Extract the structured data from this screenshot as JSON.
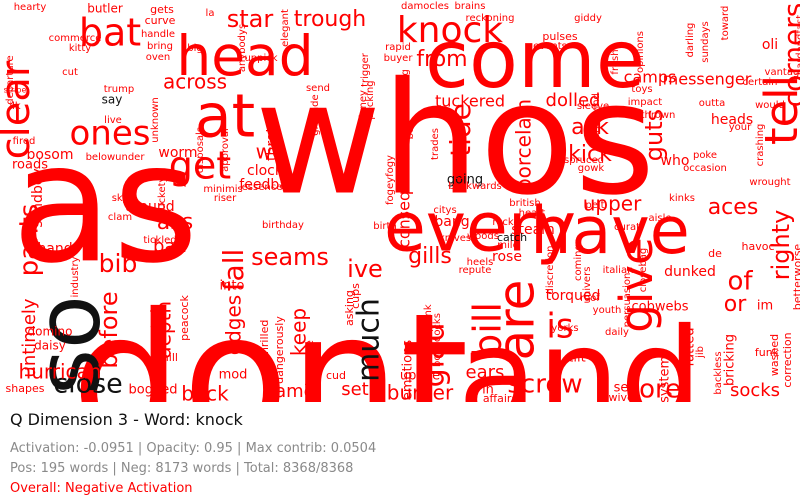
{
  "colors": {
    "positive": "#111111",
    "negative": "#ff0000",
    "muted": "#8a8a8a",
    "text": "#111111"
  },
  "words": [
    {
      "text": "whos",
      "color": "negative"
    },
    {
      "text": "dont",
      "color": "negative"
    },
    {
      "text": "as",
      "color": "negative"
    },
    {
      "text": "and",
      "color": "negative"
    },
    {
      "text": "come",
      "color": "negative"
    },
    {
      "text": "every",
      "color": "negative"
    },
    {
      "text": "have",
      "color": "negative"
    },
    {
      "text": "so",
      "color": "positive"
    },
    {
      "text": "head",
      "color": "negative"
    },
    {
      "text": "at",
      "color": "negative"
    },
    {
      "text": "tell",
      "color": "negative"
    },
    {
      "text": "are",
      "color": "negative"
    },
    {
      "text": "give",
      "color": "negative"
    },
    {
      "text": "knock",
      "color": "negative"
    },
    {
      "text": "clear",
      "color": "negative"
    },
    {
      "text": "bat",
      "color": "negative"
    },
    {
      "text": "ones",
      "color": "negative"
    },
    {
      "text": "get",
      "color": "negative"
    },
    {
      "text": "is",
      "color": "negative"
    },
    {
      "text": "bill",
      "color": "negative"
    },
    {
      "text": "close",
      "color": "positive"
    },
    {
      "text": "screw",
      "color": "negative"
    },
    {
      "text": "tore",
      "color": "negative"
    },
    {
      "text": "star",
      "color": "negative"
    },
    {
      "text": "trough",
      "color": "negative"
    },
    {
      "text": "corners",
      "color": "negative"
    },
    {
      "text": "from",
      "color": "negative"
    },
    {
      "text": "camps",
      "color": "negative"
    },
    {
      "text": "ask",
      "color": "negative"
    },
    {
      "text": "kick",
      "color": "negative"
    },
    {
      "text": "tide",
      "color": "negative"
    },
    {
      "text": "upper",
      "color": "negative"
    },
    {
      "text": "aces",
      "color": "negative"
    },
    {
      "text": "righty",
      "color": "negative"
    },
    {
      "text": "guts",
      "color": "negative"
    },
    {
      "text": "pants",
      "color": "negative"
    },
    {
      "text": "bib",
      "color": "negative"
    },
    {
      "text": "ive",
      "color": "negative"
    },
    {
      "text": "seams",
      "color": "negative"
    },
    {
      "text": "fall",
      "color": "negative"
    },
    {
      "text": "gills",
      "color": "negative"
    },
    {
      "text": "glad",
      "color": "negative"
    },
    {
      "text": "much",
      "color": "positive"
    },
    {
      "text": "of",
      "color": "negative"
    },
    {
      "text": "or",
      "color": "negative"
    },
    {
      "text": "before",
      "color": "negative"
    },
    {
      "text": "back",
      "color": "negative"
    },
    {
      "text": "came",
      "color": "negative"
    },
    {
      "text": "set",
      "color": "negative"
    },
    {
      "text": "burner",
      "color": "negative"
    },
    {
      "text": "ears",
      "color": "negative"
    },
    {
      "text": "socks",
      "color": "negative"
    },
    {
      "text": "untimely",
      "color": "negative"
    },
    {
      "text": "hurrican",
      "color": "negative"
    },
    {
      "text": "across",
      "color": "negative"
    },
    {
      "text": "ass",
      "color": "negative"
    },
    {
      "text": "bad",
      "color": "negative"
    },
    {
      "text": "keep",
      "color": "negative"
    },
    {
      "text": "we",
      "color": "negative"
    },
    {
      "text": "depth",
      "color": "negative"
    },
    {
      "text": "edges",
      "color": "negative"
    },
    {
      "text": "porcelain",
      "color": "negative"
    },
    {
      "text": "consequence",
      "color": "negative"
    },
    {
      "text": "tuckered",
      "color": "negative"
    },
    {
      "text": "dolled",
      "color": "negative"
    },
    {
      "text": "messenger",
      "color": "negative"
    },
    {
      "text": "heads",
      "color": "negative"
    },
    {
      "text": "who",
      "color": "negative"
    },
    {
      "text": "torqued",
      "color": "negative"
    },
    {
      "text": "dunked",
      "color": "negative"
    },
    {
      "text": "steam",
      "color": "negative"
    },
    {
      "text": "rose",
      "color": "negative"
    },
    {
      "text": "bang",
      "color": "negative"
    },
    {
      "text": "worm",
      "color": "negative"
    },
    {
      "text": "clock",
      "color": "negative"
    },
    {
      "text": "feedbag",
      "color": "negative"
    },
    {
      "text": "around",
      "color": "negative"
    },
    {
      "text": "throttle",
      "color": "negative"
    },
    {
      "text": "bosom",
      "color": "negative"
    },
    {
      "text": "roads",
      "color": "negative"
    },
    {
      "text": "hand",
      "color": "negative"
    },
    {
      "text": "sandboy",
      "color": "negative"
    },
    {
      "text": "bogged",
      "color": "negative"
    },
    {
      "text": "mod",
      "color": "negative"
    },
    {
      "text": "into",
      "color": "negative"
    },
    {
      "text": "emotions",
      "color": "negative"
    },
    {
      "text": "uprise",
      "color": "negative"
    },
    {
      "text": "cobwebs",
      "color": "negative"
    },
    {
      "text": "im",
      "color": "negative"
    },
    {
      "text": "fatted",
      "color": "negative"
    },
    {
      "text": "bricking",
      "color": "negative"
    },
    {
      "text": "systems",
      "color": "negative"
    },
    {
      "text": "tilt",
      "color": "negative"
    },
    {
      "text": "see",
      "color": "negative"
    },
    {
      "text": "wives",
      "color": "negative"
    },
    {
      "text": "in",
      "color": "negative"
    },
    {
      "text": "affairs",
      "color": "negative"
    },
    {
      "text": "cud",
      "color": "negative"
    },
    {
      "text": "going",
      "color": "positive"
    },
    {
      "text": "catch",
      "color": "positive"
    },
    {
      "text": "domino",
      "color": "negative"
    },
    {
      "text": "daisy",
      "color": "negative"
    },
    {
      "text": "shapes",
      "color": "negative"
    },
    {
      "text": "mill",
      "color": "negative"
    },
    {
      "text": "stork",
      "color": "negative"
    },
    {
      "text": "peacock",
      "color": "negative"
    },
    {
      "text": "impasse",
      "color": "negative"
    },
    {
      "text": "thrilled",
      "color": "negative"
    },
    {
      "text": "dangerously",
      "color": "negative"
    },
    {
      "text": "asking",
      "color": "negative"
    },
    {
      "text": "cups",
      "color": "negative"
    },
    {
      "text": "plank",
      "color": "negative"
    },
    {
      "text": "boondocks",
      "color": "negative"
    },
    {
      "text": "repute",
      "color": "negative"
    },
    {
      "text": "italian",
      "color": "negative"
    },
    {
      "text": "havoc",
      "color": "negative"
    },
    {
      "text": "de",
      "color": "negative"
    },
    {
      "text": "funk",
      "color": "negative"
    },
    {
      "text": "washed",
      "color": "negative"
    },
    {
      "text": "correction",
      "color": "negative"
    },
    {
      "text": "betterworse",
      "color": "negative"
    },
    {
      "text": "daily",
      "color": "negative"
    },
    {
      "text": "youth",
      "color": "negative"
    },
    {
      "text": "roof",
      "color": "negative"
    },
    {
      "text": "yorks",
      "color": "negative"
    },
    {
      "text": "curat",
      "color": "negative"
    },
    {
      "text": "pelt",
      "color": "negative"
    },
    {
      "text": "aisle",
      "color": "negative"
    },
    {
      "text": "kinks",
      "color": "negative"
    },
    {
      "text": "wrought",
      "color": "negative"
    },
    {
      "text": "poke",
      "color": "negative"
    },
    {
      "text": "occasion",
      "color": "negative"
    },
    {
      "text": "tonsil",
      "color": "negative"
    },
    {
      "text": "spruced",
      "color": "negative"
    },
    {
      "text": "gowk",
      "color": "negative"
    },
    {
      "text": "whirlwind",
      "color": "negative"
    },
    {
      "text": "sleeve",
      "color": "negative"
    },
    {
      "text": "impact",
      "color": "negative"
    },
    {
      "text": "toys",
      "color": "negative"
    },
    {
      "text": "thrown",
      "color": "negative"
    },
    {
      "text": "outta",
      "color": "negative"
    },
    {
      "text": "your",
      "color": "negative"
    },
    {
      "text": "would",
      "color": "negative"
    },
    {
      "text": "crashing",
      "color": "negative"
    },
    {
      "text": "certain",
      "color": "negative"
    },
    {
      "text": "oli",
      "color": "negative"
    },
    {
      "text": "pulses",
      "color": "negative"
    },
    {
      "text": "events",
      "color": "negative"
    },
    {
      "text": "giddy",
      "color": "negative"
    },
    {
      "text": "fresh",
      "color": "negative"
    },
    {
      "text": "opinions",
      "color": "negative"
    },
    {
      "text": "darling",
      "color": "negative"
    },
    {
      "text": "sundays",
      "color": "negative"
    },
    {
      "text": "toward",
      "color": "negative"
    },
    {
      "text": "hardandfast",
      "color": "negative"
    },
    {
      "text": "vantage",
      "color": "negative"
    },
    {
      "text": "reckoning",
      "color": "negative"
    },
    {
      "text": "brains",
      "color": "negative"
    },
    {
      "text": "damocles",
      "color": "negative"
    },
    {
      "text": "rapid",
      "color": "negative"
    },
    {
      "text": "buyer",
      "color": "negative"
    },
    {
      "text": "trigger",
      "color": "negative"
    },
    {
      "text": "elegant",
      "color": "negative"
    },
    {
      "text": "uppick",
      "color": "negative"
    },
    {
      "text": "anybodys",
      "color": "negative"
    },
    {
      "text": "la",
      "color": "negative"
    },
    {
      "text": "big",
      "color": "negative"
    },
    {
      "text": "gets",
      "color": "negative"
    },
    {
      "text": "curve",
      "color": "negative"
    },
    {
      "text": "handle",
      "color": "negative"
    },
    {
      "text": "bring",
      "color": "negative"
    },
    {
      "text": "oven",
      "color": "negative"
    },
    {
      "text": "butler",
      "color": "negative"
    },
    {
      "text": "hearty",
      "color": "negative"
    },
    {
      "text": "kitty",
      "color": "negative"
    },
    {
      "text": "commerce",
      "color": "negative"
    },
    {
      "text": "cut",
      "color": "negative"
    },
    {
      "text": "departure",
      "color": "negative"
    },
    {
      "text": "stripe",
      "color": "negative"
    },
    {
      "text": "ilk",
      "color": "negative"
    },
    {
      "text": "fired",
      "color": "negative"
    },
    {
      "text": "trump",
      "color": "negative"
    },
    {
      "text": "say",
      "color": "positive"
    },
    {
      "text": "live",
      "color": "negative"
    },
    {
      "text": "unknown",
      "color": "negative"
    },
    {
      "text": "approval",
      "color": "negative"
    },
    {
      "text": "disposals",
      "color": "negative"
    },
    {
      "text": "belowunder",
      "color": "negative"
    },
    {
      "text": "sky",
      "color": "negative"
    },
    {
      "text": "clam",
      "color": "negative"
    },
    {
      "text": "industry",
      "color": "negative"
    },
    {
      "text": "muckety",
      "color": "negative"
    },
    {
      "text": "ranks",
      "color": "negative"
    },
    {
      "text": "tickled",
      "color": "negative"
    },
    {
      "text": "riser",
      "color": "negative"
    },
    {
      "text": "minimis",
      "color": "negative"
    },
    {
      "text": "essence",
      "color": "negative"
    },
    {
      "text": "birthday",
      "color": "negative"
    },
    {
      "text": "send",
      "color": "negative"
    },
    {
      "text": "grenade",
      "color": "negative"
    },
    {
      "text": "baloney",
      "color": "negative"
    },
    {
      "text": "pecking",
      "color": "negative"
    },
    {
      "text": "batting",
      "color": "negative"
    },
    {
      "text": "bee",
      "color": "negative"
    },
    {
      "text": "fogeyfogy",
      "color": "negative"
    },
    {
      "text": "trades",
      "color": "negative"
    },
    {
      "text": "brotherly",
      "color": "negative"
    },
    {
      "text": "backwards",
      "color": "negative"
    },
    {
      "text": "birth",
      "color": "negative"
    },
    {
      "text": "citys",
      "color": "negative"
    },
    {
      "text": "knives",
      "color": "negative"
    },
    {
      "text": "british",
      "color": "negative"
    },
    {
      "text": "heart",
      "color": "negative"
    },
    {
      "text": "rocker",
      "color": "negative"
    },
    {
      "text": "mile",
      "color": "negative"
    },
    {
      "text": "woods",
      "color": "negative"
    },
    {
      "text": "heels",
      "color": "negative"
    },
    {
      "text": "discretion",
      "color": "negative"
    },
    {
      "text": "comings",
      "color": "negative"
    },
    {
      "text": "univers",
      "color": "negative"
    },
    {
      "text": "persuasion",
      "color": "negative"
    },
    {
      "text": "closebag",
      "color": "negative"
    },
    {
      "text": "jib",
      "color": "negative"
    },
    {
      "text": "backless",
      "color": "negative"
    }
  ],
  "info": {
    "title": "Q Dimension 3 - Word: knock",
    "stats": "Activation: -0.0951 | Opacity: 0.95 | Max contrib: 0.0504",
    "counts": "Pos: 195 words | Neg: 8173 words | Total: 8368/8368",
    "overall": "Overall: Negative Activation",
    "overall_color": "#ff0000"
  }
}
